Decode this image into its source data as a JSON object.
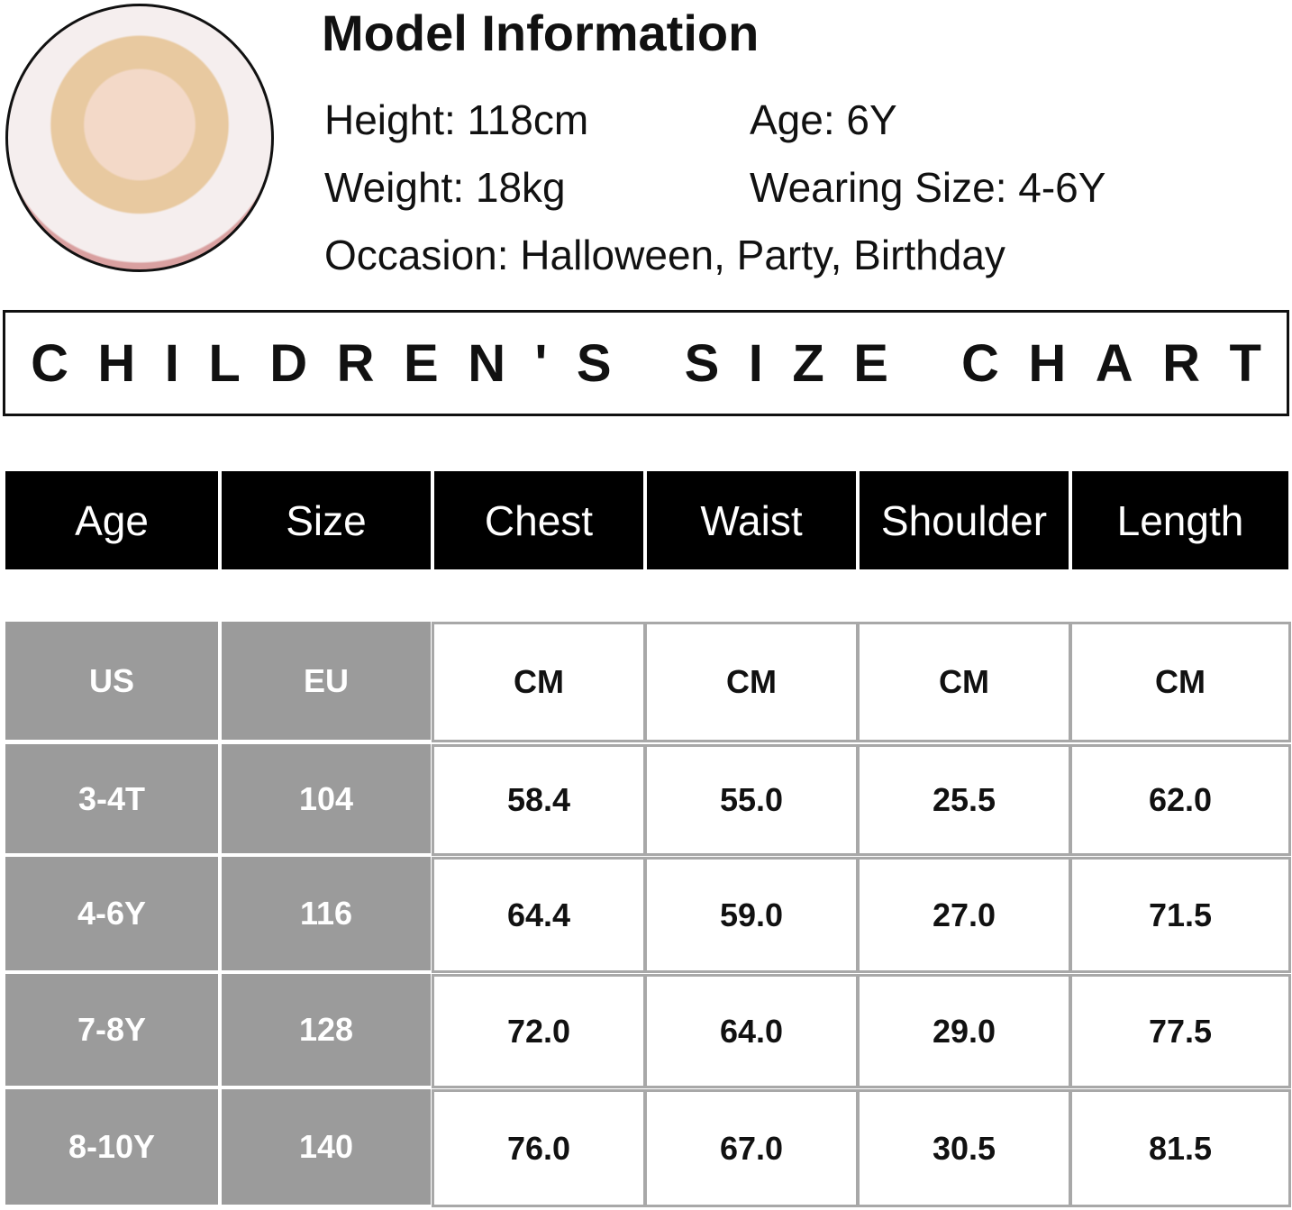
{
  "model_info": {
    "title": "Model Information",
    "height": "Height: 118cm",
    "age": "Age: 6Y",
    "weight": "Weight: 18kg",
    "wearing_size": "Wearing Size: 4-6Y",
    "occasion": "Occasion: Halloween, Party, Birthday"
  },
  "banner": "CHILDREN'S SIZE CHART",
  "table": {
    "header": [
      "Age",
      "Size",
      "Chest",
      "Waist",
      "Shoulder",
      "Length"
    ],
    "rows": [
      [
        "US",
        "EU",
        "CM",
        "CM",
        "CM",
        "CM"
      ],
      [
        "3-4T",
        "104",
        "58.4",
        "55.0",
        "25.5",
        "62.0"
      ],
      [
        "4-6Y",
        "116",
        "64.4",
        "59.0",
        "27.0",
        "71.5"
      ],
      [
        "7-8Y",
        "128",
        "72.0",
        "64.0",
        "29.0",
        "77.5"
      ],
      [
        "8-10Y",
        "140",
        "76.0",
        "67.0",
        "30.5",
        "81.5"
      ]
    ]
  }
}
